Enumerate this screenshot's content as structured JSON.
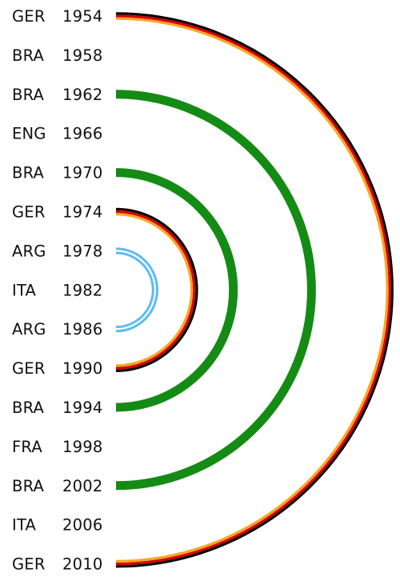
{
  "rows": [
    {
      "team": "GER",
      "year": "1954"
    },
    {
      "team": "BRA",
      "year": "1958"
    },
    {
      "team": "BRA",
      "year": "1962"
    },
    {
      "team": "ENG",
      "year": "1966"
    },
    {
      "team": "BRA",
      "year": "1970"
    },
    {
      "team": "GER",
      "year": "1974"
    },
    {
      "team": "ARG",
      "year": "1978"
    },
    {
      "team": "ITA",
      "year": "1982"
    },
    {
      "team": "ARG",
      "year": "1986"
    },
    {
      "team": "GER",
      "year": "1990"
    },
    {
      "team": "BRA",
      "year": "1994"
    },
    {
      "team": "FRA",
      "year": "1998"
    },
    {
      "team": "BRA",
      "year": "2002"
    },
    {
      "team": "ITA",
      "year": "2006"
    },
    {
      "team": "GER",
      "year": "2010"
    }
  ],
  "arcs": [
    {
      "from_year": "1954",
      "to_year": "2010",
      "team": "GER",
      "style": "tricolor",
      "colors": [
        "#000000",
        "#d90000",
        "#f5a623"
      ]
    },
    {
      "from_year": "1962",
      "to_year": "2002",
      "team": "BRA",
      "style": "solid",
      "colors": [
        "#148b14"
      ]
    },
    {
      "from_year": "1970",
      "to_year": "1994",
      "team": "BRA",
      "style": "solid",
      "colors": [
        "#148b14"
      ]
    },
    {
      "from_year": "1974",
      "to_year": "1990",
      "team": "GER",
      "style": "tricolor",
      "colors": [
        "#000000",
        "#d90000",
        "#f5a623"
      ]
    },
    {
      "from_year": "1978",
      "to_year": "1986",
      "team": "ARG",
      "style": "double",
      "colors": [
        "#5bbcf0",
        "#ffffff"
      ]
    }
  ]
}
